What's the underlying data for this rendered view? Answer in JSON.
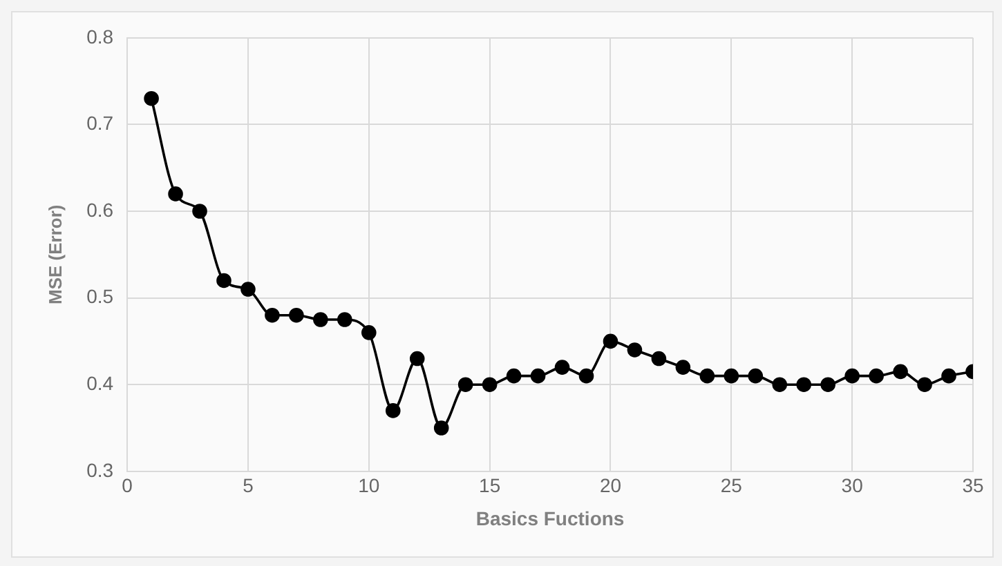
{
  "chart_data": {
    "type": "line",
    "xlabel": "Basics Fuctions",
    "ylabel": "MSE (Error)",
    "x": [
      1,
      2,
      3,
      4,
      5,
      6,
      7,
      8,
      9,
      10,
      11,
      12,
      13,
      14,
      15,
      16,
      17,
      18,
      19,
      20,
      21,
      22,
      23,
      24,
      25,
      26,
      27,
      28,
      29,
      30,
      31,
      32,
      33,
      34,
      35
    ],
    "series": [
      {
        "color": "#000000",
        "values": [
          0.73,
          0.62,
          0.6,
          0.52,
          0.51,
          0.48,
          0.48,
          0.475,
          0.475,
          0.46,
          0.37,
          0.43,
          0.35,
          0.4,
          0.4,
          0.41,
          0.41,
          0.42,
          0.41,
          0.45,
          0.44,
          0.43,
          0.42,
          0.41,
          0.41,
          0.41,
          0.4,
          0.4,
          0.4,
          0.41,
          0.41,
          0.415,
          0.4,
          0.41,
          0.415
        ]
      }
    ],
    "xlim": [
      0,
      35
    ],
    "xticks": [
      0,
      5,
      10,
      15,
      20,
      25,
      30,
      35
    ],
    "ylim": [
      0.3,
      0.8
    ],
    "yticks": [
      0.3,
      0.4,
      0.5,
      0.6,
      0.7,
      0.8
    ],
    "grid": true,
    "legend": false,
    "marker": "circle",
    "line_style": "solid"
  }
}
